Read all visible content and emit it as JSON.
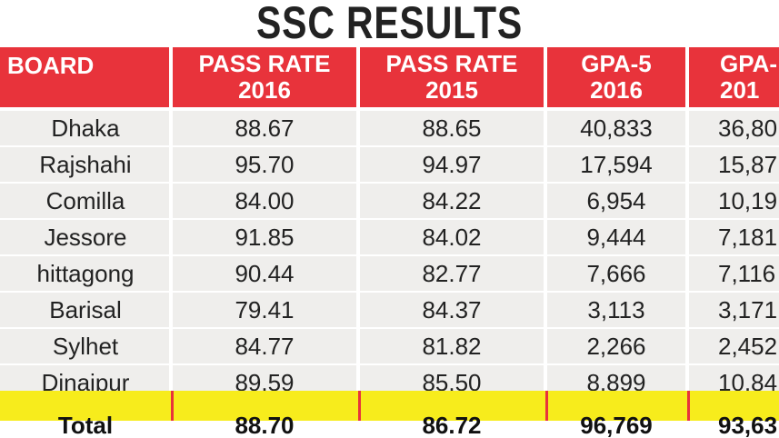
{
  "title": "SSC RESULTS",
  "table": {
    "columns": [
      [
        "BOARD"
      ],
      [
        "PASS RATE",
        "2016"
      ],
      [
        "PASS RATE",
        "2015"
      ],
      [
        "GPA-5",
        "2016"
      ],
      [
        "GPA-",
        "201"
      ]
    ],
    "rows": [
      [
        "Dhaka",
        "88.67",
        "88.65",
        "40,833",
        "36,80"
      ],
      [
        "Rajshahi",
        "95.70",
        "94.97",
        "17,594",
        "15,87"
      ],
      [
        "Comilla",
        "84.00",
        "84.22",
        "6,954",
        "10,19"
      ],
      [
        "Jessore",
        "91.85",
        "84.02",
        "9,444",
        "7,181"
      ],
      [
        "hittagong",
        "90.44",
        "82.77",
        "7,666",
        "7,116"
      ],
      [
        "Barisal",
        "79.41",
        "84.37",
        "3,113",
        "3,171"
      ],
      [
        "Sylhet",
        "84.77",
        "81.82",
        "2,266",
        "2,452"
      ],
      [
        "Dinajpur",
        "89.59",
        "85.50",
        "8,899",
        "10,84"
      ]
    ],
    "total": [
      "Total",
      "88.70",
      "86.72",
      "96,769",
      "93,63"
    ]
  }
}
